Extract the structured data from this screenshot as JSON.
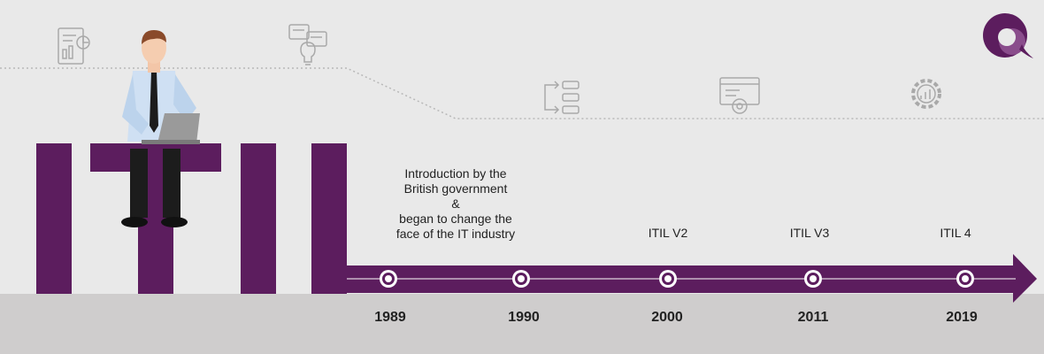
{
  "colors": {
    "background": "#e9e9e9",
    "floor": "#cfcdcd",
    "brand_purple": "#5c1d5e",
    "dotted_line": "#b8b8b8",
    "icon_gray": "#a9a9a9"
  },
  "letters": "ITIL",
  "icons": [
    "report-chart-icon",
    "lightbulb-idea-icon",
    "workflow-icon",
    "browser-settings-icon",
    "gear-chart-icon"
  ],
  "logo_icon": "brand-logo-icon",
  "intro": {
    "line1": "Introduction by the",
    "line2": "British government",
    "line3": "&",
    "line4": "began to change the",
    "line5": "face of the IT industry"
  },
  "labels": {
    "v2": "ITIL V2",
    "v3": "ITIL V3",
    "v4": "ITIL 4"
  },
  "years": [
    "1989",
    "1990",
    "2000",
    "2011",
    "2019"
  ]
}
